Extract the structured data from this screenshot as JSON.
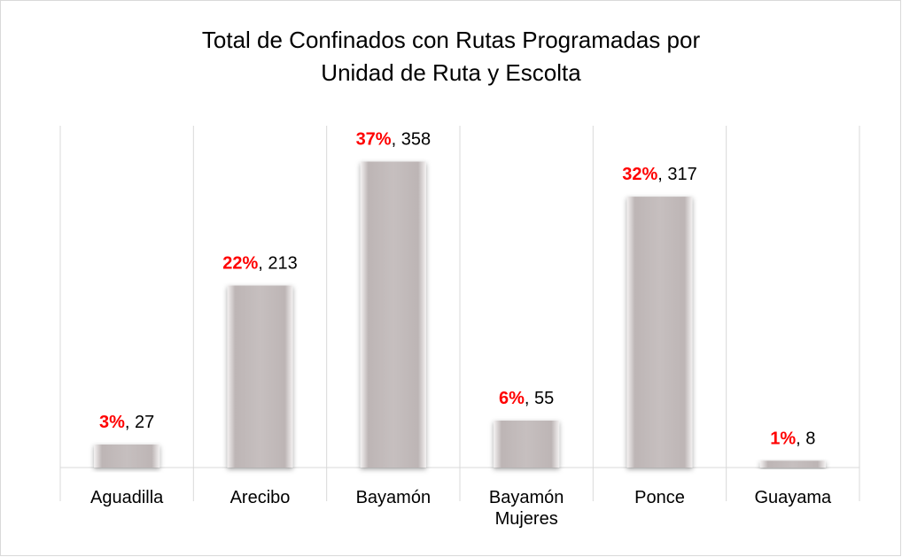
{
  "chart_data": {
    "type": "bar",
    "title_lines": [
      "Total de Confinados con Rutas Programadas por",
      "Unidad de Ruta y Escolta"
    ],
    "categories": [
      "Aguadilla",
      "Arecibo",
      "Bayamón",
      "Bayamón Mujeres",
      "Ponce",
      "Guayama"
    ],
    "values": [
      27,
      213,
      358,
      55,
      317,
      8
    ],
    "percent_labels": [
      "3%",
      "22%",
      "37%",
      "6%",
      "32%",
      "1%"
    ],
    "label_separator": ", ",
    "color": "#c3bcbc",
    "percent_color": "#ff0000",
    "ylim": [
      0,
      400
    ],
    "grid": true
  }
}
